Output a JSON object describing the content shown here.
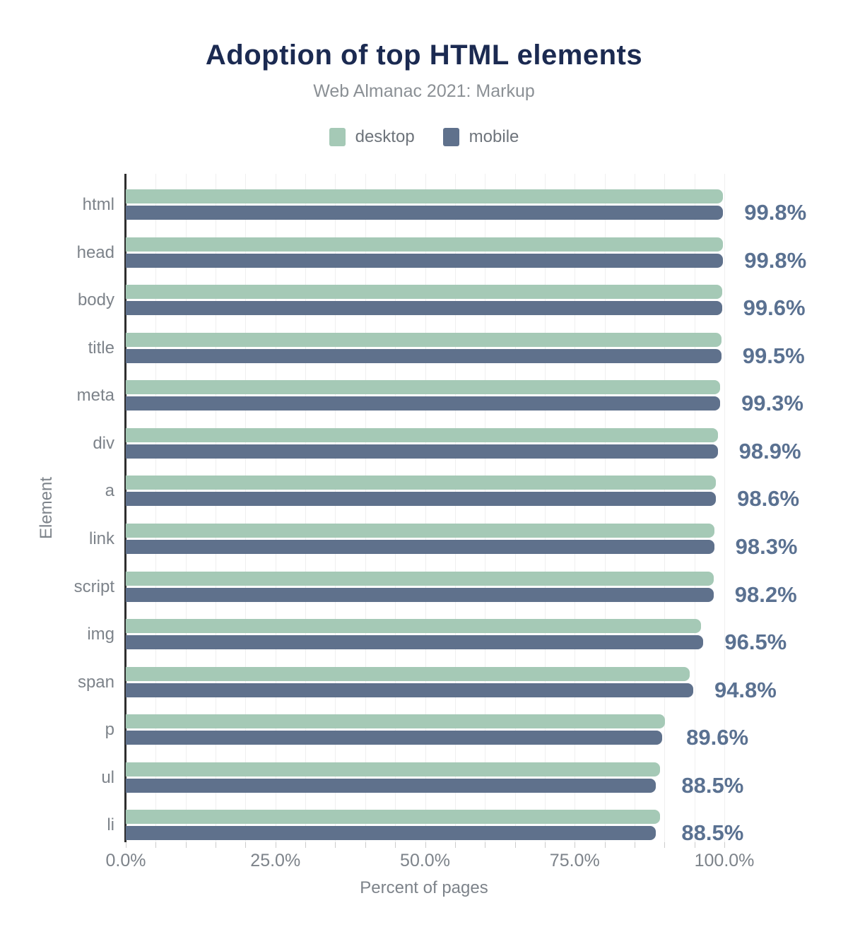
{
  "header": {
    "title": "Adoption of top HTML elements",
    "subtitle": "Web Almanac 2021: Markup"
  },
  "colors": {
    "desktop": "#a5c9b6",
    "mobile": "#5f718c",
    "title_text": "#1b2a51",
    "muted_text": "#7d838a",
    "value_text": "#5a7191",
    "gridline": "#efefef",
    "axis_line": "#2e2e2e"
  },
  "chart_data": {
    "type": "bar",
    "orientation": "horizontal",
    "title": "Adoption of top HTML elements",
    "subtitle": "Web Almanac 2021: Markup",
    "xlabel": "Percent of pages",
    "ylabel": "Element",
    "xlim": [
      0,
      100
    ],
    "grid": "vertical minor gridlines every 5%",
    "legend_position": "top",
    "categories": [
      "html",
      "head",
      "body",
      "title",
      "meta",
      "div",
      "a",
      "link",
      "script",
      "img",
      "span",
      "p",
      "ul",
      "li"
    ],
    "series": [
      {
        "name": "desktop",
        "color": "#a5c9b6",
        "values": [
          99.8,
          99.8,
          99.6,
          99.5,
          99.3,
          98.9,
          98.6,
          98.3,
          98.2,
          96.1,
          94.2,
          90.1,
          89.3,
          89.3
        ]
      },
      {
        "name": "mobile",
        "color": "#5f718c",
        "values": [
          99.8,
          99.8,
          99.6,
          99.5,
          99.3,
          98.9,
          98.6,
          98.3,
          98.2,
          96.5,
          94.8,
          89.6,
          88.5,
          88.5
        ]
      }
    ],
    "value_labels": [
      "99.8%",
      "99.8%",
      "99.6%",
      "99.5%",
      "99.3%",
      "98.9%",
      "98.6%",
      "98.3%",
      "98.2%",
      "96.5%",
      "94.8%",
      "89.6%",
      "88.5%",
      "88.5%"
    ],
    "x_ticks": [
      {
        "label": "0.0%",
        "value": 0
      },
      {
        "label": "25.0%",
        "value": 25
      },
      {
        "label": "50.0%",
        "value": 50
      },
      {
        "label": "75.0%",
        "value": 75
      },
      {
        "label": "100.0%",
        "value": 100
      }
    ]
  }
}
